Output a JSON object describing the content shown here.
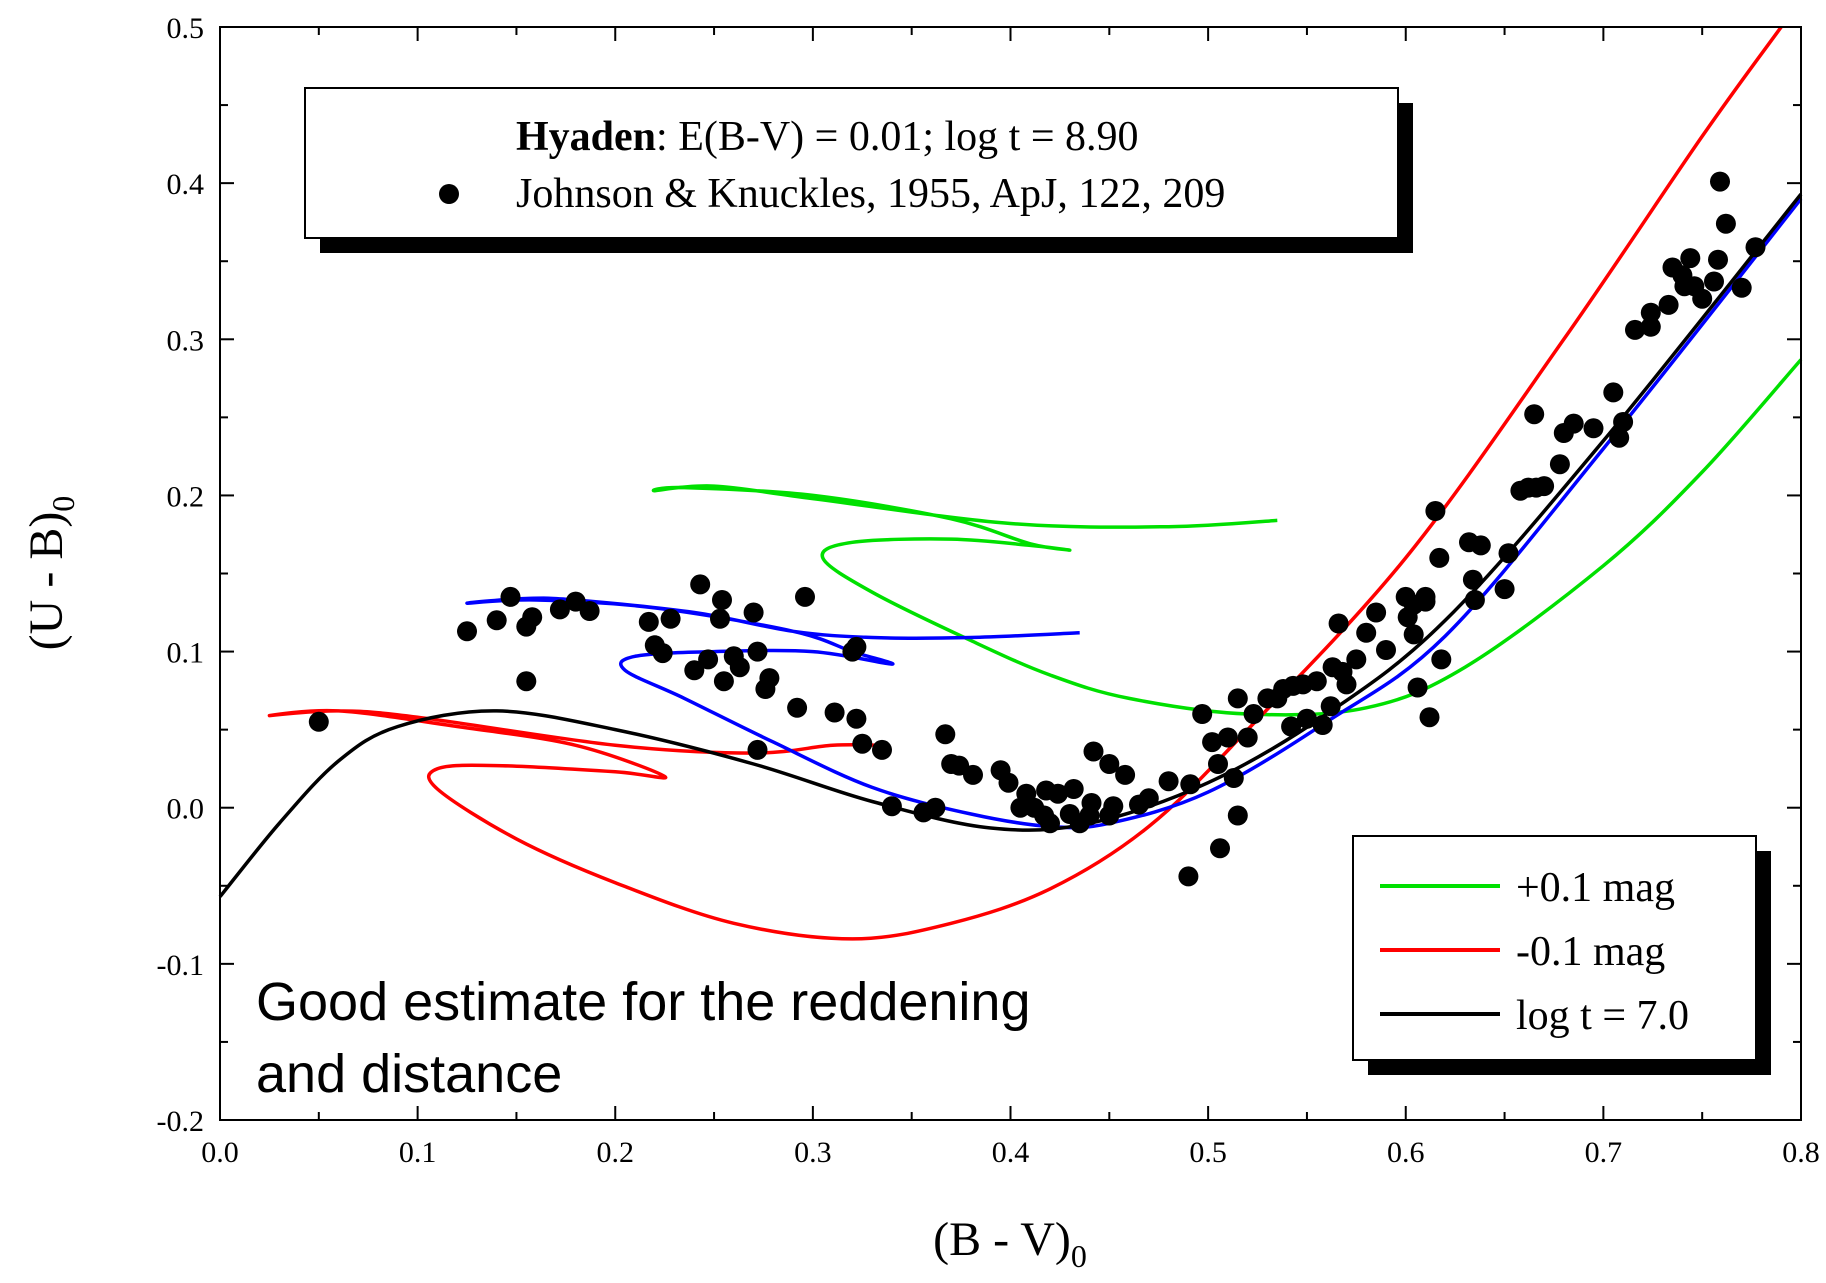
{
  "chart_data": {
    "type": "scatter",
    "title": "",
    "xlabel": "(B - V)",
    "xlabel_sub": "0",
    "ylabel": "(U - B)",
    "ylabel_sub": "0",
    "xlim": [
      0.0,
      0.8
    ],
    "ylim": [
      -0.2,
      0.5
    ],
    "x_ticks": [
      "0.0",
      "0.1",
      "0.2",
      "0.3",
      "0.4",
      "0.5",
      "0.6",
      "0.7",
      "0.8"
    ],
    "y_ticks": [
      "-0.2",
      "-0.1",
      "0.0",
      "0.1",
      "0.2",
      "0.3",
      "0.4",
      "0.5"
    ],
    "grid": false,
    "top_legend": {
      "placement": "top-left",
      "bold_label": "Hyaden",
      "line1_rest": ": E(B-V) = 0.01; log t = 8.90",
      "marker_label": "Johnson & Knuckles, 1955, ApJ, 122, 209"
    },
    "annotation": [
      "Good estimate for the reddening",
      "and distance"
    ],
    "legend": {
      "placement": "bottom-right",
      "entries": [
        "+0.1 mag",
        "-0.1 mag",
        "log t = 7.0"
      ]
    },
    "colors": {
      "green": "#00e000",
      "red": "#ff0000",
      "blue": "#0000ff",
      "black": "#000000"
    },
    "scatter_points": [
      [
        0.05,
        0.055
      ],
      [
        0.125,
        0.113
      ],
      [
        0.14,
        0.12
      ],
      [
        0.147,
        0.135
      ],
      [
        0.155,
        0.116
      ],
      [
        0.158,
        0.122
      ],
      [
        0.155,
        0.081
      ],
      [
        0.172,
        0.127
      ],
      [
        0.18,
        0.132
      ],
      [
        0.187,
        0.126
      ],
      [
        0.217,
        0.119
      ],
      [
        0.22,
        0.104
      ],
      [
        0.224,
        0.099
      ],
      [
        0.228,
        0.121
      ],
      [
        0.24,
        0.088
      ],
      [
        0.243,
        0.143
      ],
      [
        0.247,
        0.095
      ],
      [
        0.253,
        0.121
      ],
      [
        0.254,
        0.133
      ],
      [
        0.255,
        0.081
      ],
      [
        0.26,
        0.097
      ],
      [
        0.263,
        0.09
      ],
      [
        0.27,
        0.125
      ],
      [
        0.272,
        0.1
      ],
      [
        0.272,
        0.037
      ],
      [
        0.276,
        0.076
      ],
      [
        0.278,
        0.083
      ],
      [
        0.292,
        0.064
      ],
      [
        0.296,
        0.135
      ],
      [
        0.311,
        0.061
      ],
      [
        0.322,
        0.103
      ],
      [
        0.322,
        0.057
      ],
      [
        0.32,
        0.1
      ],
      [
        0.325,
        0.041
      ],
      [
        0.335,
        0.037
      ],
      [
        0.34,
        0.001
      ],
      [
        0.356,
        -0.003
      ],
      [
        0.362,
        0.0
      ],
      [
        0.367,
        0.047
      ],
      [
        0.37,
        0.028
      ],
      [
        0.374,
        0.027
      ],
      [
        0.381,
        0.021
      ],
      [
        0.395,
        0.024
      ],
      [
        0.399,
        0.016
      ],
      [
        0.405,
        0.0
      ],
      [
        0.408,
        0.009
      ],
      [
        0.412,
        0.0
      ],
      [
        0.417,
        -0.005
      ],
      [
        0.418,
        0.011
      ],
      [
        0.42,
        -0.01
      ],
      [
        0.424,
        0.009
      ],
      [
        0.43,
        -0.004
      ],
      [
        0.432,
        0.012
      ],
      [
        0.435,
        -0.01
      ],
      [
        0.44,
        -0.005
      ],
      [
        0.441,
        0.003
      ],
      [
        0.442,
        0.036
      ],
      [
        0.45,
        -0.005
      ],
      [
        0.45,
        0.028
      ],
      [
        0.452,
        0.001
      ],
      [
        0.458,
        0.021
      ],
      [
        0.465,
        0.002
      ],
      [
        0.47,
        0.006
      ],
      [
        0.48,
        0.017
      ],
      [
        0.49,
        -0.044
      ],
      [
        0.491,
        0.015
      ],
      [
        0.497,
        0.06
      ],
      [
        0.502,
        0.042
      ],
      [
        0.505,
        0.028
      ],
      [
        0.506,
        -0.026
      ],
      [
        0.51,
        0.045
      ],
      [
        0.513,
        0.019
      ],
      [
        0.515,
        0.07
      ],
      [
        0.515,
        -0.005
      ],
      [
        0.52,
        0.045
      ],
      [
        0.523,
        0.06
      ],
      [
        0.53,
        0.07
      ],
      [
        0.535,
        0.07
      ],
      [
        0.538,
        0.076
      ],
      [
        0.542,
        0.052
      ],
      [
        0.543,
        0.078
      ],
      [
        0.548,
        0.079
      ],
      [
        0.55,
        0.057
      ],
      [
        0.555,
        0.081
      ],
      [
        0.558,
        0.053
      ],
      [
        0.562,
        0.065
      ],
      [
        0.563,
        0.09
      ],
      [
        0.568,
        0.087
      ],
      [
        0.57,
        0.079
      ],
      [
        0.566,
        0.118
      ],
      [
        0.575,
        0.095
      ],
      [
        0.58,
        0.112
      ],
      [
        0.585,
        0.125
      ],
      [
        0.59,
        0.101
      ],
      [
        0.6,
        0.135
      ],
      [
        0.601,
        0.122
      ],
      [
        0.604,
        0.13
      ],
      [
        0.604,
        0.111
      ],
      [
        0.606,
        0.077
      ],
      [
        0.61,
        0.135
      ],
      [
        0.61,
        0.132
      ],
      [
        0.612,
        0.058
      ],
      [
        0.615,
        0.19
      ],
      [
        0.617,
        0.16
      ],
      [
        0.618,
        0.095
      ],
      [
        0.632,
        0.17
      ],
      [
        0.634,
        0.146
      ],
      [
        0.635,
        0.133
      ],
      [
        0.638,
        0.168
      ],
      [
        0.65,
        0.14
      ],
      [
        0.652,
        0.163
      ],
      [
        0.658,
        0.203
      ],
      [
        0.662,
        0.205
      ],
      [
        0.665,
        0.252
      ],
      [
        0.666,
        0.205
      ],
      [
        0.67,
        0.206
      ],
      [
        0.678,
        0.22
      ],
      [
        0.68,
        0.24
      ],
      [
        0.685,
        0.246
      ],
      [
        0.695,
        0.243
      ],
      [
        0.705,
        0.266
      ],
      [
        0.708,
        0.237
      ],
      [
        0.71,
        0.247
      ],
      [
        0.716,
        0.306
      ],
      [
        0.724,
        0.317
      ],
      [
        0.724,
        0.308
      ],
      [
        0.733,
        0.322
      ],
      [
        0.735,
        0.346
      ],
      [
        0.74,
        0.341
      ],
      [
        0.741,
        0.334
      ],
      [
        0.744,
        0.352
      ],
      [
        0.746,
        0.334
      ],
      [
        0.75,
        0.326
      ],
      [
        0.756,
        0.337
      ],
      [
        0.758,
        0.351
      ],
      [
        0.759,
        0.401
      ],
      [
        0.762,
        0.374
      ],
      [
        0.77,
        0.333
      ],
      [
        0.777,
        0.359
      ]
    ],
    "series": [
      {
        "name": "+0.1 mag",
        "color": "#00e000",
        "points": [
          [
            0.535,
            0.184
          ],
          [
            0.48,
            0.18
          ],
          [
            0.4,
            0.182
          ],
          [
            0.3,
            0.198
          ],
          [
            0.25,
            0.206
          ],
          [
            0.22,
            0.203
          ],
          [
            0.235,
            0.205
          ],
          [
            0.3,
            0.2
          ],
          [
            0.37,
            0.185
          ],
          [
            0.41,
            0.169
          ],
          [
            0.43,
            0.165
          ],
          [
            0.41,
            0.168
          ],
          [
            0.37,
            0.172
          ],
          [
            0.32,
            0.17
          ],
          [
            0.305,
            0.16
          ],
          [
            0.33,
            0.138
          ],
          [
            0.38,
            0.107
          ],
          [
            0.42,
            0.085
          ],
          [
            0.46,
            0.07
          ],
          [
            0.52,
            0.06
          ],
          [
            0.58,
            0.064
          ],
          [
            0.63,
            0.09
          ],
          [
            0.7,
            0.155
          ],
          [
            0.75,
            0.215
          ],
          [
            0.8,
            0.287
          ]
        ]
      },
      {
        "name": "-0.1 mag",
        "color": "#ff0000",
        "points": [
          [
            0.335,
            0.04
          ],
          [
            0.31,
            0.04
          ],
          [
            0.27,
            0.035
          ],
          [
            0.2,
            0.04
          ],
          [
            0.1,
            0.058
          ],
          [
            0.06,
            0.062
          ],
          [
            0.025,
            0.059
          ],
          [
            0.06,
            0.062
          ],
          [
            0.12,
            0.052
          ],
          [
            0.18,
            0.04
          ],
          [
            0.225,
            0.02
          ],
          [
            0.2,
            0.023
          ],
          [
            0.14,
            0.027
          ],
          [
            0.11,
            0.025
          ],
          [
            0.11,
            0.012
          ],
          [
            0.15,
            -0.02
          ],
          [
            0.2,
            -0.048
          ],
          [
            0.26,
            -0.074
          ],
          [
            0.32,
            -0.084
          ],
          [
            0.37,
            -0.074
          ],
          [
            0.42,
            -0.052
          ],
          [
            0.47,
            -0.012
          ],
          [
            0.52,
            0.05
          ],
          [
            0.6,
            0.16
          ],
          [
            0.68,
            0.3
          ],
          [
            0.75,
            0.43
          ],
          [
            0.79,
            0.5
          ]
        ]
      },
      {
        "name": "",
        "color": "#0000ff",
        "points": [
          [
            0.435,
            0.112
          ],
          [
            0.38,
            0.109
          ],
          [
            0.33,
            0.109
          ],
          [
            0.29,
            0.113
          ],
          [
            0.24,
            0.125
          ],
          [
            0.18,
            0.133
          ],
          [
            0.155,
            0.134
          ],
          [
            0.125,
            0.131
          ],
          [
            0.16,
            0.133
          ],
          [
            0.22,
            0.128
          ],
          [
            0.29,
            0.113
          ],
          [
            0.32,
            0.1
          ],
          [
            0.34,
            0.092
          ],
          [
            0.3,
            0.1
          ],
          [
            0.25,
            0.1
          ],
          [
            0.21,
            0.097
          ],
          [
            0.205,
            0.088
          ],
          [
            0.235,
            0.07
          ],
          [
            0.28,
            0.042
          ],
          [
            0.33,
            0.013
          ],
          [
            0.38,
            -0.004
          ],
          [
            0.42,
            -0.012
          ],
          [
            0.45,
            -0.01
          ],
          [
            0.5,
            0.01
          ],
          [
            0.56,
            0.055
          ],
          [
            0.62,
            0.11
          ],
          [
            0.7,
            0.23
          ],
          [
            0.8,
            0.39
          ]
        ]
      },
      {
        "name": "log t = 7.0",
        "color": "#000000",
        "points": [
          [
            0.0,
            -0.057
          ],
          [
            0.03,
            -0.01
          ],
          [
            0.06,
            0.03
          ],
          [
            0.09,
            0.052
          ],
          [
            0.14,
            0.062
          ],
          [
            0.2,
            0.05
          ],
          [
            0.27,
            0.028
          ],
          [
            0.33,
            0.004
          ],
          [
            0.39,
            -0.013
          ],
          [
            0.44,
            -0.01
          ],
          [
            0.5,
            0.016
          ],
          [
            0.56,
            0.06
          ],
          [
            0.62,
            0.12
          ],
          [
            0.7,
            0.235
          ],
          [
            0.8,
            0.393
          ]
        ]
      }
    ]
  }
}
